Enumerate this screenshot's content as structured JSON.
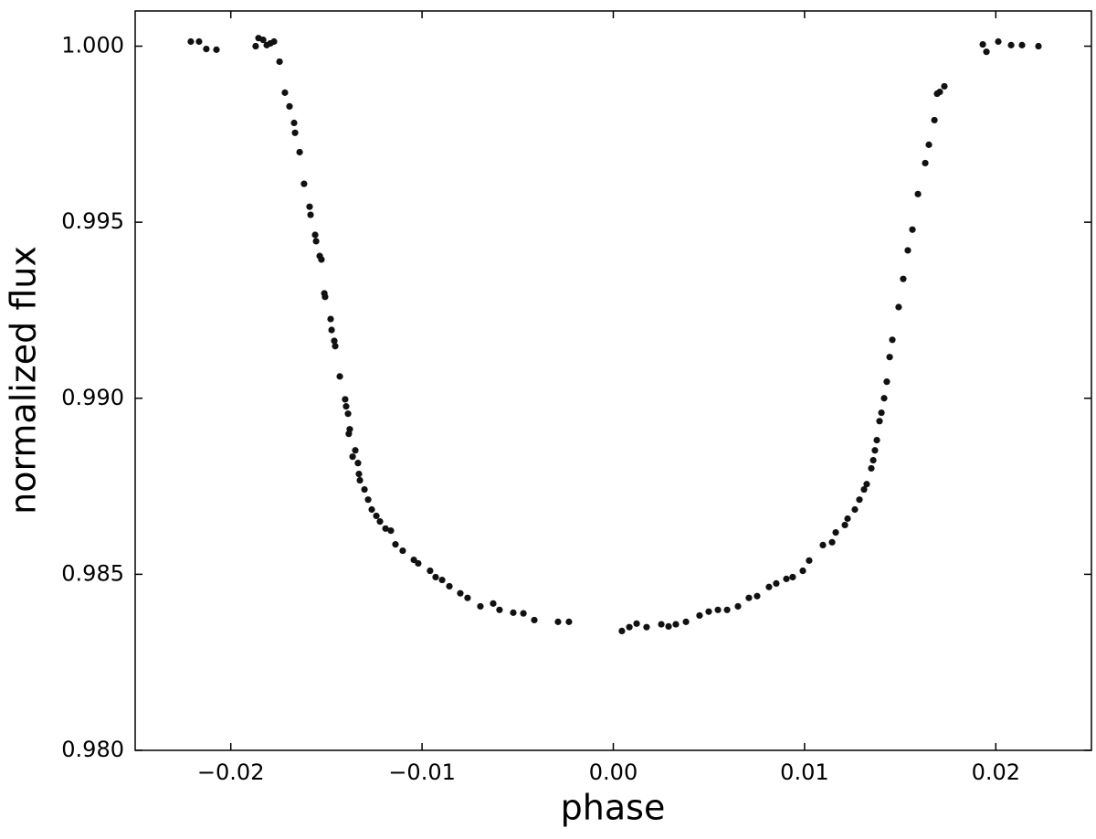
{
  "chart_data": {
    "type": "scatter",
    "xlabel": "phase",
    "ylabel": "normalized flux",
    "color": "#111111",
    "xlim": [
      -0.025,
      0.025
    ],
    "ylim": [
      0.98,
      1.001
    ],
    "xticks": [
      {
        "value": -0.02,
        "label": "−0.02"
      },
      {
        "value": -0.01,
        "label": "−0.01"
      },
      {
        "value": 0,
        "label": "0.00"
      },
      0.01,
      0.02
    ],
    "yticks": [
      {
        "value": 0.98,
        "label": "0.980"
      },
      0.985,
      {
        "value": 0.99,
        "label": "0.990"
      },
      0.995,
      {
        "value": 1,
        "label": "1.000"
      }
    ],
    "x": [
      -0.02209,
      -0.02166,
      -0.02128,
      -0.02075,
      -0.0187,
      -0.01855,
      -0.01831,
      -0.01812,
      -0.01793,
      -0.01774,
      -0.01745,
      -0.01717,
      -0.01693,
      -0.01669,
      -0.01664,
      -0.0164,
      -0.01617,
      -0.01588,
      -0.01583,
      -0.01559,
      -0.01554,
      -0.01535,
      -0.01526,
      -0.01511,
      -0.01507,
      -0.01478,
      -0.01473,
      -0.01459,
      -0.01454,
      -0.0143,
      -0.01402,
      -0.01397,
      -0.01387,
      -0.01378,
      -0.01383,
      -0.01363,
      -0.01349,
      -0.01335,
      -0.0133,
      -0.01325,
      -0.01301,
      -0.01282,
      -0.01263,
      -0.01239,
      -0.0122,
      -0.01191,
      -0.01163,
      -0.01139,
      -0.01101,
      -0.01043,
      -0.0102,
      -0.00958,
      -0.00929,
      -0.00895,
      -0.00857,
      -0.008,
      -0.00762,
      -0.00695,
      -0.00628,
      -0.00595,
      -0.00523,
      -0.0047,
      -0.00413,
      -0.00289,
      -0.00232,
      0.00045,
      0.00084,
      0.00122,
      0.00174,
      0.00251,
      0.00289,
      0.00327,
      0.0038,
      0.00451,
      0.00499,
      0.00547,
      0.00595,
      0.00652,
      0.00709,
      0.00752,
      0.00814,
      0.00852,
      0.00905,
      0.00938,
      0.00991,
      0.01024,
      0.01096,
      0.01144,
      0.01163,
      0.01211,
      0.01225,
      0.01263,
      0.01287,
      0.01311,
      0.01325,
      0.01349,
      0.01359,
      0.01368,
      0.01378,
      0.01392,
      0.01402,
      0.01416,
      0.0143,
      0.01445,
      0.01459,
      0.01492,
      0.01516,
      0.0154,
      0.01564,
      0.01593,
      0.01631,
      0.0165,
      0.01679,
      0.01693,
      0.01707,
      0.01731,
      0.01932,
      0.01951,
      0.02013,
      0.0208,
      0.02137,
      0.02223
    ],
    "values": [
      1.00013,
      1.00013,
      0.99992,
      0.9999,
      1.0,
      1.00023,
      1.00018,
      1.00003,
      1.00008,
      1.00013,
      0.99956,
      0.99868,
      0.99829,
      0.99782,
      0.99754,
      0.99699,
      0.99609,
      0.99544,
      0.99521,
      0.99464,
      0.99446,
      0.99404,
      0.99394,
      0.99298,
      0.99288,
      0.99225,
      0.99194,
      0.99163,
      0.99148,
      0.99062,
      0.98997,
      0.98977,
      0.98956,
      0.98912,
      0.98899,
      0.98834,
      0.98852,
      0.98816,
      0.98785,
      0.98767,
      0.98741,
      0.98712,
      0.98684,
      0.98666,
      0.9865,
      0.9863,
      0.98624,
      0.98585,
      0.98567,
      0.98541,
      0.98531,
      0.9851,
      0.98492,
      0.98484,
      0.98466,
      0.98446,
      0.98433,
      0.98409,
      0.98417,
      0.98399,
      0.98391,
      0.98389,
      0.9837,
      0.98365,
      0.98365,
      0.98339,
      0.9835,
      0.9836,
      0.9835,
      0.98358,
      0.98352,
      0.98358,
      0.98365,
      0.98383,
      0.98394,
      0.98399,
      0.98399,
      0.98409,
      0.98433,
      0.98438,
      0.98464,
      0.98474,
      0.98487,
      0.98492,
      0.9851,
      0.98539,
      0.98583,
      0.98591,
      0.98619,
      0.9864,
      0.98658,
      0.98684,
      0.98712,
      0.98741,
      0.98756,
      0.98801,
      0.98824,
      0.98852,
      0.98881,
      0.98935,
      0.98959,
      0.99,
      0.99047,
      0.99117,
      0.99166,
      0.99259,
      0.99339,
      0.9942,
      0.99479,
      0.9958,
      0.99668,
      0.9972,
      0.9979,
      0.99865,
      0.9987,
      0.99886,
      1.00005,
      0.99984,
      1.00013,
      1.00003,
      1.00003,
      1.0
    ]
  }
}
